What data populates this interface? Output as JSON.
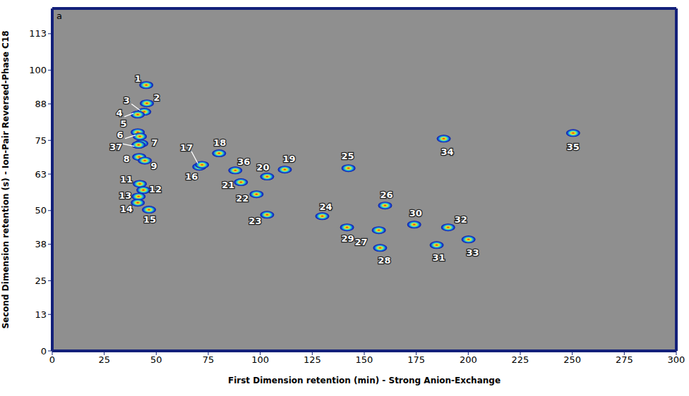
{
  "chart_data": {
    "type": "scatter",
    "panel_label": "a",
    "x_label": "First Dimension retention (min) - Strong Anion-Exchange",
    "y_label": "Second Dimension retention (s) - Ion-Pair Reversed-Phase C18",
    "xlim": [
      0,
      300
    ],
    "xticks": [
      0,
      25,
      50,
      75,
      100,
      125,
      150,
      175,
      200,
      225,
      250,
      275,
      300
    ],
    "ylim": [
      0,
      122
    ],
    "yticks": [
      0,
      13,
      25,
      38,
      50,
      63,
      75,
      88,
      100,
      113
    ],
    "grid": false,
    "data_labels": true,
    "labels": [
      "1",
      "2",
      "3",
      "4",
      "5",
      "6",
      "7",
      "37",
      "8",
      "9",
      "11",
      "12",
      "13",
      "14",
      "15",
      "16",
      "17",
      "18",
      "36",
      "20",
      "19",
      "21",
      "22",
      "23",
      "24",
      "25",
      "29",
      "26",
      "27",
      "28",
      "30",
      "34",
      "35",
      "31",
      "32",
      "33"
    ],
    "x": [
      45.2,
      45.5,
      44.2,
      41.1,
      41.1,
      42.1,
      42.8,
      41.5,
      41.8,
      44.5,
      42.1,
      43.8,
      41.5,
      41.1,
      46.5,
      70.7,
      72.0,
      80.2,
      88.0,
      103.3,
      111.8,
      90.7,
      98.2,
      103.3,
      129.8,
      142.4,
      141.7,
      160.0,
      157.0,
      157.6,
      174.0,
      188.2,
      250.4,
      184.8,
      190.3,
      200.1
    ],
    "values": [
      94.7,
      88.2,
      85.2,
      84.2,
      77.9,
      76.4,
      73.9,
      73.4,
      69.1,
      67.8,
      59.5,
      57.3,
      55.0,
      52.8,
      50.3,
      65.6,
      66.3,
      70.4,
      64.3,
      62.1,
      64.6,
      60.1,
      55.8,
      48.5,
      48.0,
      65.1,
      44.0,
      51.8,
      43.0,
      36.7,
      45.0,
      75.6,
      77.6,
      37.7,
      44.0,
      39.7
    ]
  }
}
